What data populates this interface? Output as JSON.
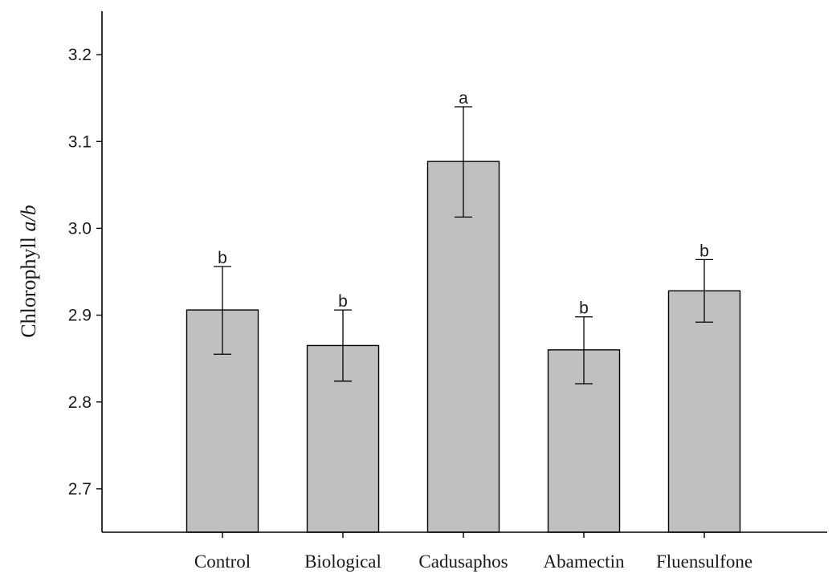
{
  "chart_data": {
    "type": "bar",
    "title": "",
    "xlabel": "",
    "ylabel": {
      "text_prefix": "Chlorophyll ",
      "text_italic": "a/b"
    },
    "categories": [
      "Control",
      "Biological",
      "Cadusaphos",
      "Abamectin",
      "Fluensulfone"
    ],
    "values": [
      2.906,
      2.865,
      3.077,
      2.86,
      2.928
    ],
    "error_low": [
      2.855,
      2.824,
      3.013,
      2.821,
      2.892
    ],
    "error_high": [
      2.956,
      2.906,
      3.14,
      2.898,
      2.964
    ],
    "significance": [
      "b",
      "b",
      "a",
      "b",
      "b"
    ],
    "ylim": [
      2.65,
      3.25
    ],
    "yticks": [
      2.7,
      2.8,
      2.9,
      3.0,
      3.1,
      3.2
    ],
    "ytick_labels": [
      "2.7",
      "2.8",
      "2.9",
      "3.0",
      "3.1",
      "3.2"
    ],
    "grid": false,
    "colors": {
      "bar_fill": "#c0c0c0",
      "bar_stroke": "#000000"
    }
  }
}
